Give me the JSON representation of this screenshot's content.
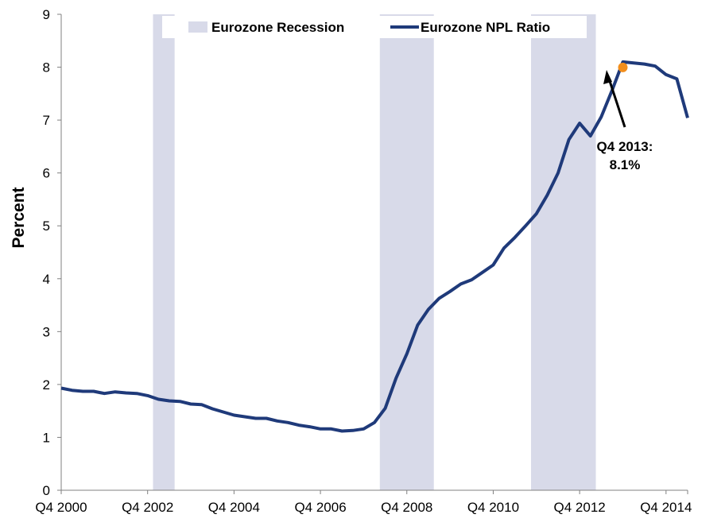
{
  "chart_data": {
    "type": "line",
    "ylabel": "Percent",
    "ylim": [
      0,
      9
    ],
    "yticks": [
      "0",
      "1",
      "2",
      "3",
      "4",
      "5",
      "6",
      "7",
      "8",
      "9"
    ],
    "xticks": [
      "Q4 2000",
      "Q4 2002",
      "Q4 2004",
      "Q4 2006",
      "Q4 2008",
      "Q4 2010",
      "Q4 2012",
      "Q4 2014"
    ],
    "series": [
      {
        "name": "Eurozone NPL Ratio",
        "color": "#1f3a7a",
        "x": [
          "Q4 2000",
          "Q1 2001",
          "Q2 2001",
          "Q3 2001",
          "Q4 2001",
          "Q1 2002",
          "Q2 2002",
          "Q3 2002",
          "Q4 2002",
          "Q1 2003",
          "Q2 2003",
          "Q3 2003",
          "Q4 2003",
          "Q1 2004",
          "Q2 2004",
          "Q3 2004",
          "Q4 2004",
          "Q1 2005",
          "Q2 2005",
          "Q3 2005",
          "Q4 2005",
          "Q1 2006",
          "Q2 2006",
          "Q3 2006",
          "Q4 2006",
          "Q1 2007",
          "Q2 2007",
          "Q3 2007",
          "Q4 2007",
          "Q1 2008",
          "Q2 2008",
          "Q3 2008",
          "Q4 2008",
          "Q1 2009",
          "Q2 2009",
          "Q3 2009",
          "Q4 2009",
          "Q1 2010",
          "Q2 2010",
          "Q3 2010",
          "Q4 2010",
          "Q1 2011",
          "Q2 2011",
          "Q3 2011",
          "Q4 2011",
          "Q1 2012",
          "Q2 2012",
          "Q3 2012",
          "Q4 2012",
          "Q1 2013",
          "Q2 2013",
          "Q3 2013",
          "Q4 2013",
          "Q1 2014",
          "Q2 2014",
          "Q3 2014",
          "Q4 2014",
          "Q1 2015",
          "Q2 2015"
        ],
        "values": [
          1.93,
          1.89,
          1.87,
          1.87,
          1.83,
          1.86,
          1.84,
          1.83,
          1.79,
          1.72,
          1.69,
          1.68,
          1.63,
          1.62,
          1.54,
          1.48,
          1.42,
          1.39,
          1.36,
          1.36,
          1.31,
          1.28,
          1.23,
          1.2,
          1.16,
          1.16,
          1.12,
          1.13,
          1.16,
          1.28,
          1.55,
          2.12,
          2.58,
          3.12,
          3.42,
          3.63,
          3.76,
          3.9,
          3.98,
          4.12,
          4.26,
          4.58,
          4.78,
          5.0,
          5.23,
          5.58,
          6.0,
          6.63,
          6.94,
          6.7,
          7.06,
          7.56,
          8.1,
          8.08,
          8.06,
          8.02,
          7.86,
          7.78,
          7.04
        ]
      }
    ],
    "recessions": {
      "name": "Eurozone Recession",
      "color": "#d8dae9",
      "periods": [
        [
          "Q1 2003",
          "Q2 2003"
        ],
        [
          "Q2 2008",
          "Q2 2009"
        ],
        [
          "Q4 2011",
          "Q1 2013"
        ]
      ]
    },
    "highlight": {
      "x": "Q4 2013",
      "value": 8.1,
      "label": [
        "Q4 2013:",
        "8.1%"
      ],
      "color": "#f28e1c"
    },
    "legend": {
      "placement": "top"
    },
    "grid": false
  }
}
